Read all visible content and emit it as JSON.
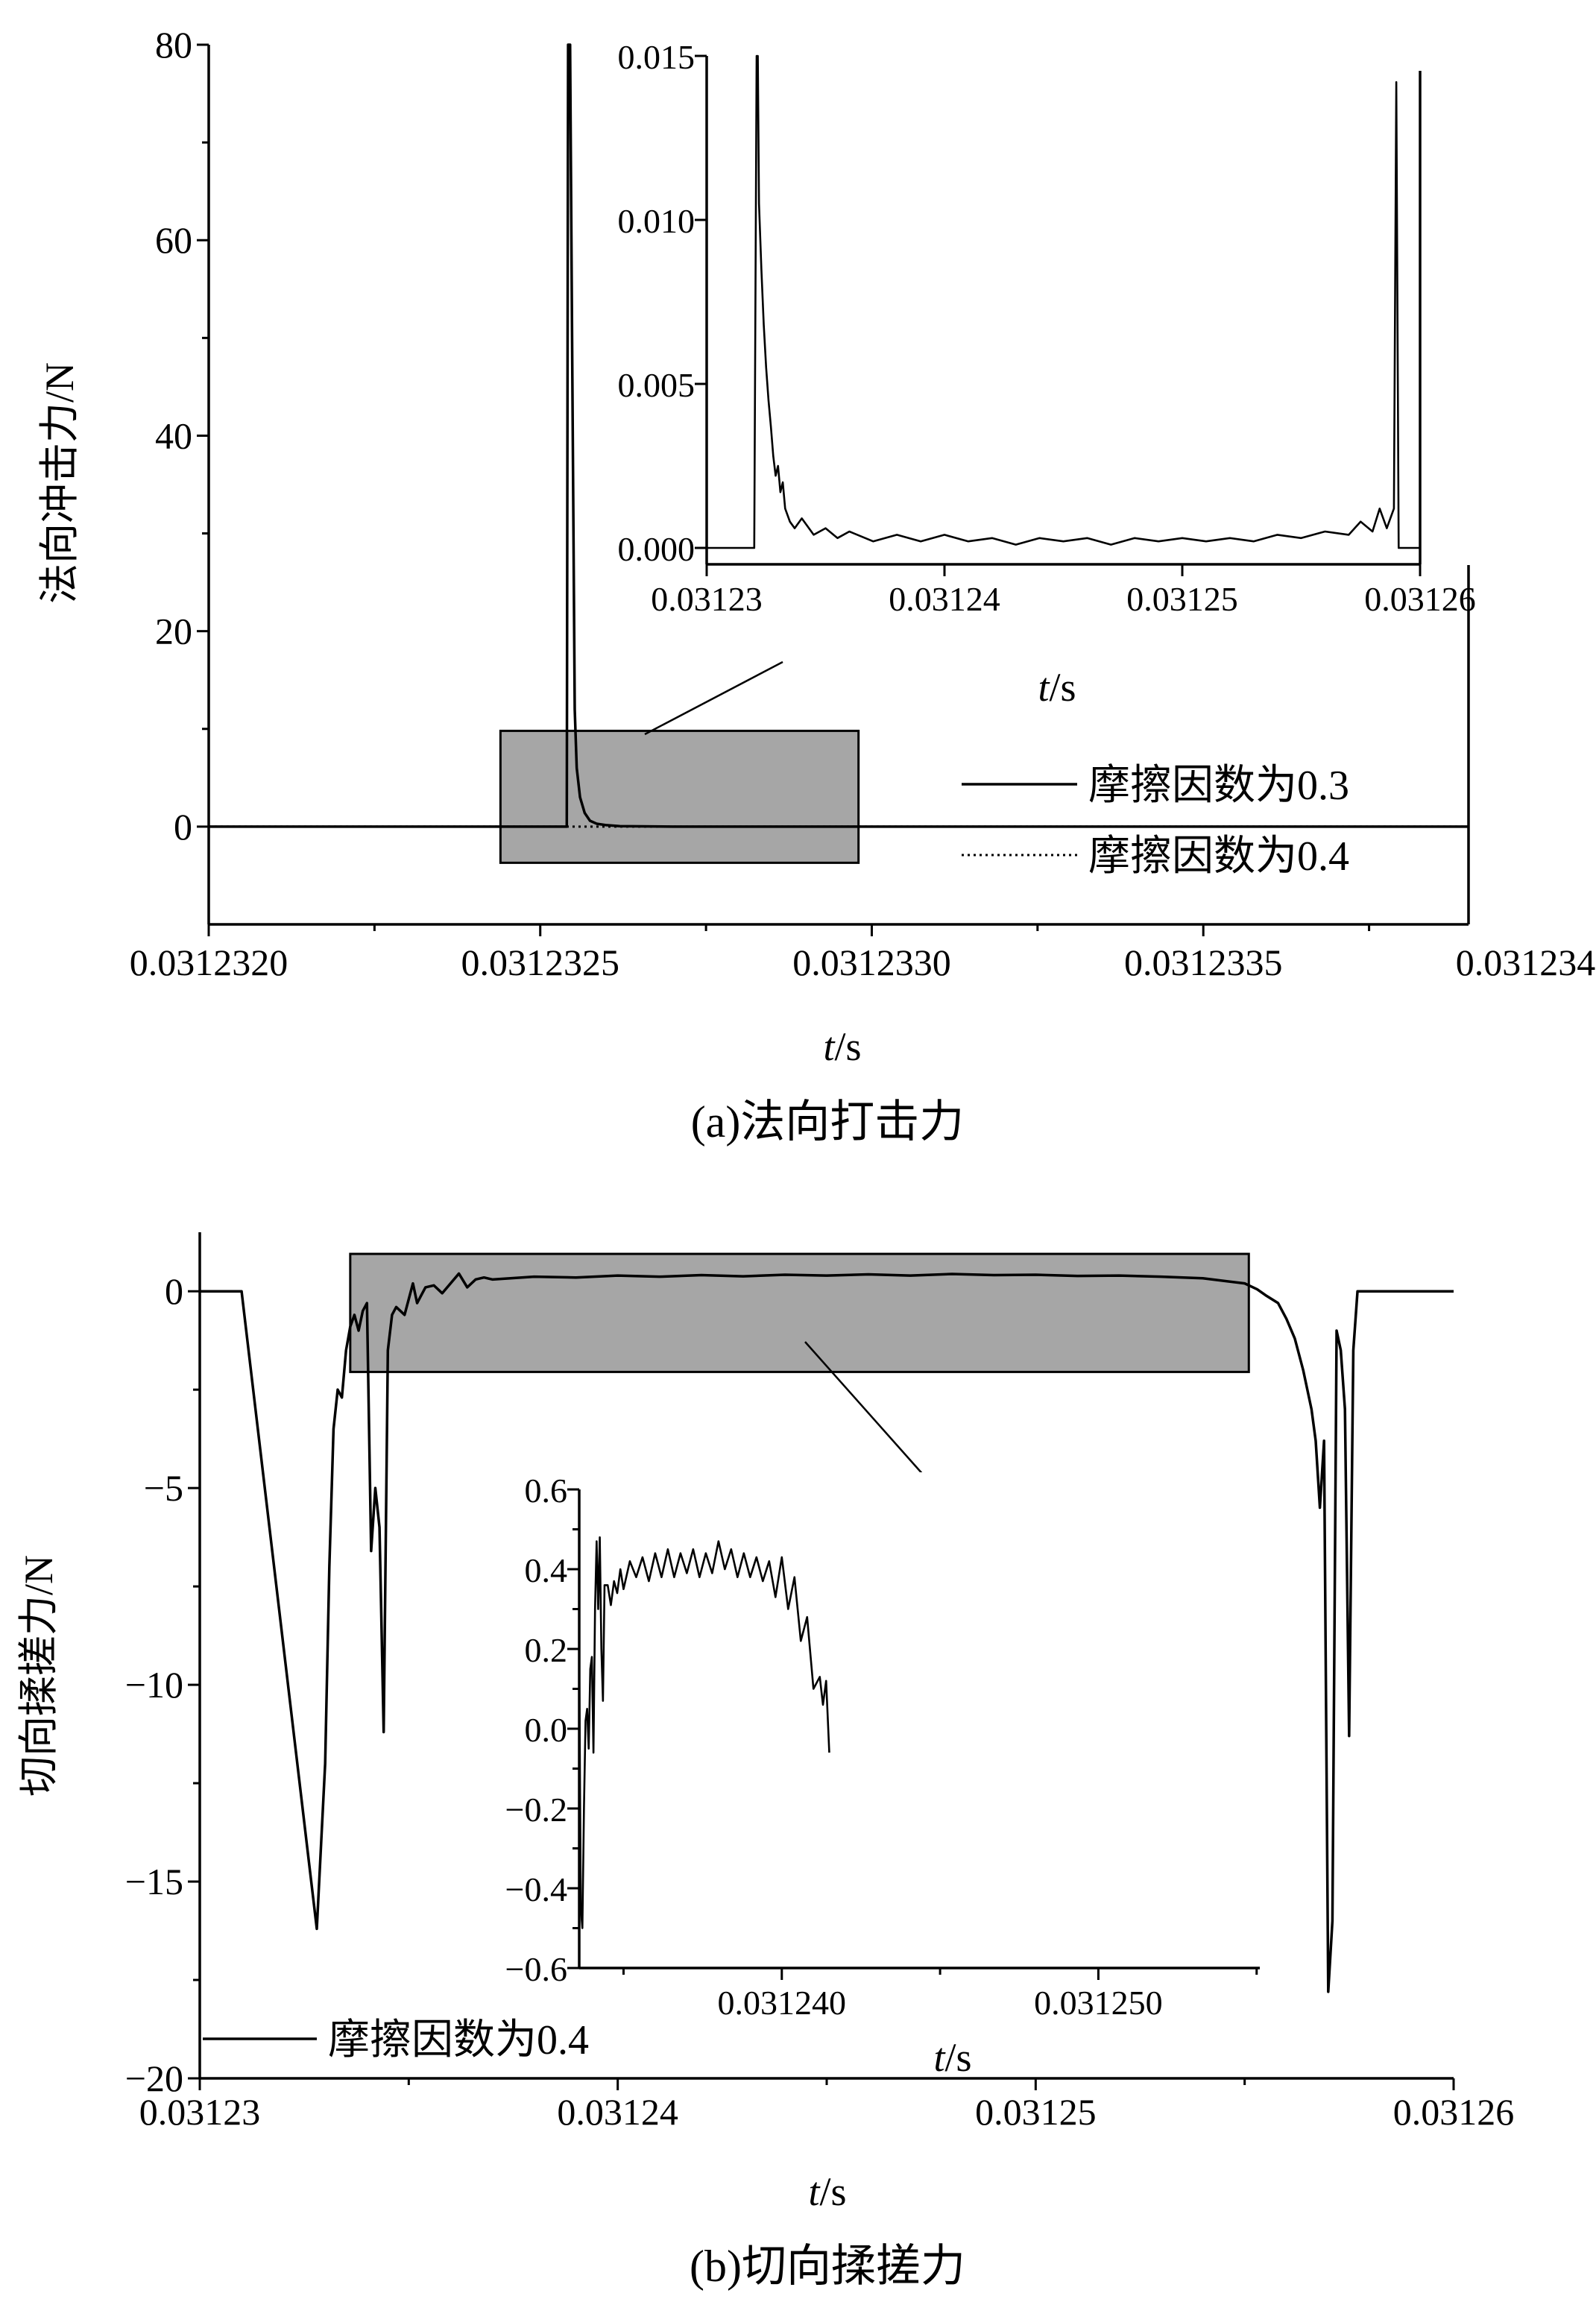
{
  "figure": {
    "caption_a": "(a)法向打击力",
    "caption_b": "(b)切向揉搓力"
  },
  "chart_data": [
    {
      "id": "a-main",
      "type": "line",
      "caption": "(a)法向打击力",
      "xlabel_italic": "t",
      "xlabel_unit": "/s",
      "ylabel": "法向冲击力/N",
      "xlim": [
        0.031232,
        0.0312339
      ],
      "ylim": [
        -10,
        80
      ],
      "x_ticks": [
        "0.0312320",
        "0.0312325",
        "0.0312330",
        "0.0312335",
        "0.0312340"
      ],
      "x_tick_values": [
        0.031232,
        0.0312325,
        0.031233,
        0.0312335,
        0.031234
      ],
      "y_ticks": [
        "0",
        "20",
        "40",
        "60",
        "80"
      ],
      "y_tick_values": [
        0,
        20,
        40,
        60,
        80
      ],
      "legend": [
        "摩擦因数为0.3",
        "摩擦因数为0.4"
      ],
      "legend_position": "lower-right",
      "zoom_box": {
        "x": [
          0.03123244,
          0.03123298
        ],
        "y": [
          -3.7,
          9.8
        ]
      },
      "series": [
        {
          "name": "摩擦因数为0.3",
          "style": "solid",
          "points": [
            [
              0.031232,
              0
            ],
            [
              0.03123254,
              0
            ],
            [
              0.031232542,
              80
            ],
            [
              0.031232545,
              80
            ],
            [
              0.031232548,
              50
            ],
            [
              0.031232552,
              12
            ],
            [
              0.031232555,
              6
            ],
            [
              0.03123256,
              3
            ],
            [
              0.031232567,
              1.4
            ],
            [
              0.031232575,
              0.6
            ],
            [
              0.031232585,
              0.3
            ],
            [
              0.0312326,
              0.15
            ],
            [
              0.03123262,
              0.05
            ],
            [
              0.0312327,
              0
            ],
            [
              0.0312339,
              0
            ]
          ]
        },
        {
          "name": "摩擦因数为0.4",
          "style": "dotted",
          "points": [
            [
              0.031232,
              0
            ],
            [
              0.0312339,
              0
            ]
          ]
        }
      ]
    },
    {
      "id": "a-inset",
      "type": "line",
      "xlabel_italic": "t",
      "xlabel_unit": "/s",
      "xlim": [
        0.03123,
        0.03126
      ],
      "ylim": [
        -0.0005,
        0.015
      ],
      "x_ticks": [
        "0.03123",
        "0.03124",
        "0.03125",
        "0.03126"
      ],
      "x_tick_values": [
        0.03123,
        0.03124,
        0.03125,
        0.03126
      ],
      "y_ticks": [
        "0.000",
        "0.005",
        "0.010",
        "0.015"
      ],
      "y_tick_values": [
        0,
        0.005,
        0.01,
        0.015
      ],
      "series": [
        {
          "style": "solid",
          "points": [
            [
              0.03123,
              0
            ],
            [
              0.031232,
              0
            ],
            [
              0.0312321,
              0.015
            ],
            [
              0.0312321,
              0.0145
            ],
            [
              0.03123215,
              0.015
            ],
            [
              0.0312322,
              0.0105
            ],
            [
              0.0312323,
              0.0085
            ],
            [
              0.0312324,
              0.0068
            ],
            [
              0.0312325,
              0.0055
            ],
            [
              0.0312326,
              0.0045
            ],
            [
              0.0312327,
              0.0037
            ],
            [
              0.0312328,
              0.0028
            ],
            [
              0.0312329,
              0.0022
            ],
            [
              0.031233,
              0.0025
            ],
            [
              0.0312331,
              0.0017
            ],
            [
              0.0312332,
              0.002
            ],
            [
              0.0312333,
              0.0012
            ],
            [
              0.0312335,
              0.0008
            ],
            [
              0.0312337,
              0.0006
            ],
            [
              0.031234,
              0.0009
            ],
            [
              0.0312345,
              0.0004
            ],
            [
              0.031235,
              0.0006
            ],
            [
              0.0312355,
              0.0003
            ],
            [
              0.031236,
              0.0005
            ],
            [
              0.031237,
              0.0002
            ],
            [
              0.031238,
              0.0004
            ],
            [
              0.031239,
              0.0002
            ],
            [
              0.03124,
              0.0004
            ],
            [
              0.031241,
              0.0002
            ],
            [
              0.031242,
              0.0003
            ],
            [
              0.031243,
              0.0001
            ],
            [
              0.031244,
              0.0003
            ],
            [
              0.031245,
              0.0002
            ],
            [
              0.031246,
              0.0003
            ],
            [
              0.031247,
              0.0001
            ],
            [
              0.031248,
              0.0003
            ],
            [
              0.031249,
              0.0002
            ],
            [
              0.03125,
              0.0003
            ],
            [
              0.031251,
              0.0002
            ],
            [
              0.031252,
              0.0003
            ],
            [
              0.031253,
              0.0002
            ],
            [
              0.031254,
              0.0004
            ],
            [
              0.031255,
              0.0003
            ],
            [
              0.031256,
              0.0005
            ],
            [
              0.031257,
              0.0004
            ],
            [
              0.0312575,
              0.0008
            ],
            [
              0.031258,
              0.0005
            ],
            [
              0.0312583,
              0.0012
            ],
            [
              0.0312586,
              0.0006
            ],
            [
              0.0312589,
              0.0012
            ],
            [
              0.031259,
              0.0142
            ],
            [
              0.0312591,
              0
            ],
            [
              0.03126,
              0
            ]
          ]
        }
      ]
    },
    {
      "id": "b-main",
      "type": "line",
      "caption": "(b)切向揉搓力",
      "xlabel_italic": "t",
      "xlabel_unit": "/s",
      "ylabel": "切向揉搓力/N",
      "xlim": [
        0.03123,
        0.03126
      ],
      "ylim": [
        -20,
        1.5
      ],
      "x_ticks": [
        "0.03123",
        "0.03124",
        "0.03125",
        "0.03126"
      ],
      "x_tick_values": [
        0.03123,
        0.03124,
        0.03125,
        0.03126
      ],
      "y_ticks": [
        "0",
        "−5",
        "−10",
        "−15",
        "−20"
      ],
      "y_tick_values": [
        0,
        -5,
        -10,
        -15,
        -20
      ],
      "legend": [
        "摩擦因数为0.4"
      ],
      "legend_position": "lower-left",
      "zoom_box": {
        "x": [
          0.0312336,
          0.0312551
        ],
        "y": [
          -2.05,
          0.95
        ]
      },
      "series": [
        {
          "name": "摩擦因数为0.4",
          "style": "solid",
          "points": [
            [
              0.03123,
              0
            ],
            [
              0.031231,
              0
            ],
            [
              0.0312328,
              -16.2
            ],
            [
              0.031233,
              -12
            ],
            [
              0.0312331,
              -7
            ],
            [
              0.0312332,
              -3.5
            ],
            [
              0.0312333,
              -2.5
            ],
            [
              0.0312334,
              -2.7
            ],
            [
              0.0312335,
              -1.5
            ],
            [
              0.0312336,
              -0.9
            ],
            [
              0.0312337,
              -0.6
            ],
            [
              0.0312338,
              -1.0
            ],
            [
              0.0312339,
              -0.5
            ],
            [
              0.031234,
              -0.3
            ],
            [
              0.0312341,
              -6.6
            ],
            [
              0.0312342,
              -5.0
            ],
            [
              0.0312343,
              -6.0
            ],
            [
              0.0312344,
              -11.2
            ],
            [
              0.0312345,
              -1.5
            ],
            [
              0.0312346,
              -0.6
            ],
            [
              0.0312347,
              -0.4
            ],
            [
              0.0312348,
              -0.5
            ],
            [
              0.0312349,
              -0.6
            ],
            [
              0.031235,
              -0.2
            ],
            [
              0.0312351,
              0.2
            ],
            [
              0.0312352,
              -0.3
            ],
            [
              0.0312353,
              -0.1
            ],
            [
              0.0312354,
              0.1
            ],
            [
              0.0312356,
              0.15
            ],
            [
              0.0312358,
              -0.05
            ],
            [
              0.031236,
              0.2
            ],
            [
              0.0312362,
              0.45
            ],
            [
              0.0312364,
              0.1
            ],
            [
              0.0312366,
              0.3
            ],
            [
              0.0312368,
              0.35
            ],
            [
              0.031237,
              0.3
            ],
            [
              0.031238,
              0.37
            ],
            [
              0.031239,
              0.35
            ],
            [
              0.03124,
              0.4
            ],
            [
              0.031241,
              0.37
            ],
            [
              0.031242,
              0.41
            ],
            [
              0.031243,
              0.38
            ],
            [
              0.031244,
              0.42
            ],
            [
              0.031245,
              0.4
            ],
            [
              0.031246,
              0.43
            ],
            [
              0.031247,
              0.4
            ],
            [
              0.031248,
              0.44
            ],
            [
              0.031249,
              0.41
            ],
            [
              0.03125,
              0.42
            ],
            [
              0.031251,
              0.39
            ],
            [
              0.031252,
              0.4
            ],
            [
              0.031253,
              0.37
            ],
            [
              0.031254,
              0.33
            ],
            [
              0.031255,
              0.2
            ],
            [
              0.0312553,
              0.05
            ],
            [
              0.0312555,
              -0.1
            ],
            [
              0.0312558,
              -0.3
            ],
            [
              0.031256,
              -0.7
            ],
            [
              0.0312562,
              -1.2
            ],
            [
              0.0312564,
              -2.0
            ],
            [
              0.0312566,
              -3.0
            ],
            [
              0.0312567,
              -3.8
            ],
            [
              0.0312568,
              -5.5
            ],
            [
              0.0312569,
              -3.8
            ],
            [
              0.031257,
              -17.8
            ],
            [
              0.0312571,
              -16
            ],
            [
              0.0312572,
              -1.0
            ],
            [
              0.0312573,
              -1.5
            ],
            [
              0.0312574,
              -3.0
            ],
            [
              0.0312575,
              -11.3
            ],
            [
              0.0312576,
              -1.5
            ],
            [
              0.0312577,
              0
            ],
            [
              0.03126,
              0
            ]
          ]
        }
      ]
    },
    {
      "id": "b-inset",
      "type": "line",
      "xlabel_italic": "t",
      "xlabel_unit": "/s",
      "xlim": [
        0.0312336,
        0.0312551
      ],
      "ylim": [
        -0.6,
        0.6
      ],
      "x_ticks": [
        "0.031240",
        "0.031250"
      ],
      "x_tick_values": [
        0.03124,
        0.03125
      ],
      "y_ticks": [
        "0.6",
        "0.4",
        "0.2",
        "0.0",
        "−0.2",
        "−0.4",
        "−0.6"
      ],
      "y_tick_values": [
        0.6,
        0.4,
        0.2,
        0,
        -0.2,
        -0.4,
        -0.6
      ],
      "series": [
        {
          "style": "solid",
          "points": [
            [
              0.0312336,
              0.18
            ],
            [
              0.03123365,
              -0.45
            ],
            [
              0.0312337,
              -0.5
            ],
            [
              0.03123375,
              -0.2
            ],
            [
              0.0312338,
              0.02
            ],
            [
              0.03123385,
              0.05
            ],
            [
              0.0312339,
              -0.05
            ],
            [
              0.03123395,
              0.15
            ],
            [
              0.031234,
              0.18
            ],
            [
              0.03123405,
              -0.06
            ],
            [
              0.0312341,
              0.3
            ],
            [
              0.03123415,
              0.47
            ],
            [
              0.0312342,
              0.3
            ],
            [
              0.03123425,
              0.48
            ],
            [
              0.0312343,
              0.2
            ],
            [
              0.03123435,
              0.07
            ],
            [
              0.0312344,
              0.36
            ],
            [
              0.0312345,
              0.36
            ],
            [
              0.0312346,
              0.31
            ],
            [
              0.0312347,
              0.37
            ],
            [
              0.0312348,
              0.34
            ],
            [
              0.0312349,
              0.4
            ],
            [
              0.031235,
              0.35
            ],
            [
              0.0312352,
              0.42
            ],
            [
              0.0312354,
              0.38
            ],
            [
              0.0312356,
              0.43
            ],
            [
              0.0312358,
              0.37
            ],
            [
              0.031236,
              0.44
            ],
            [
              0.0312362,
              0.38
            ],
            [
              0.0312364,
              0.45
            ],
            [
              0.0312366,
              0.38
            ],
            [
              0.0312368,
              0.44
            ],
            [
              0.031237,
              0.39
            ],
            [
              0.0312372,
              0.45
            ],
            [
              0.0312374,
              0.38
            ],
            [
              0.0312376,
              0.44
            ],
            [
              0.0312378,
              0.39
            ],
            [
              0.031238,
              0.47
            ],
            [
              0.0312382,
              0.4
            ],
            [
              0.0312384,
              0.45
            ],
            [
              0.0312386,
              0.38
            ],
            [
              0.0312388,
              0.44
            ],
            [
              0.031239,
              0.38
            ],
            [
              0.0312392,
              0.43
            ],
            [
              0.0312394,
              0.37
            ],
            [
              0.0312396,
              0.42
            ],
            [
              0.0312398,
              0.33
            ],
            [
              0.03124,
              0.43
            ],
            [
              0.0312402,
              0.3
            ],
            [
              0.0312404,
              0.38
            ],
            [
              0.0312406,
              0.22
            ],
            [
              0.0312408,
              0.28
            ],
            [
              0.031241,
              0.1
            ],
            [
              0.0312412,
              0.13
            ],
            [
              0.0312413,
              0.06
            ],
            [
              0.0312414,
              0.12
            ],
            [
              0.0312415,
              -0.06
            ]
          ]
        }
      ]
    }
  ]
}
